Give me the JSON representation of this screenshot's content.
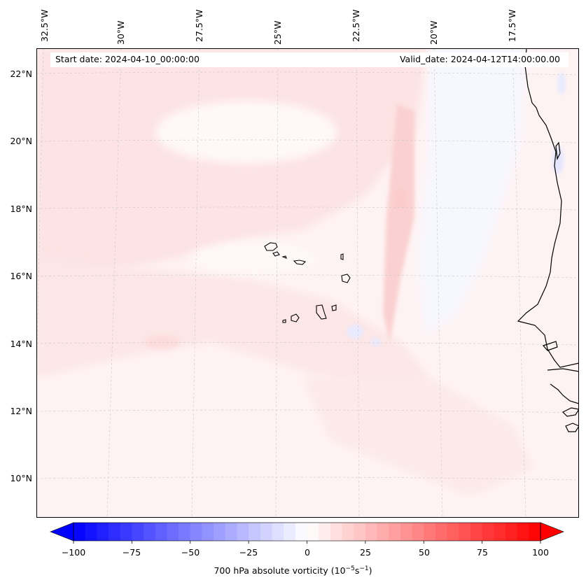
{
  "header": {
    "start_date": "Start date: 2024-04-10_00:00:00",
    "valid_date": "Valid_date: 2024-04-12T14:00:00.00"
  },
  "axes": {
    "longitude_labels": [
      "32.5°W",
      "30°W",
      "27.5°W",
      "25°W",
      "22.5°W",
      "20°W",
      "17.5°W"
    ],
    "latitude_labels": [
      "22°N",
      "20°N",
      "18°N",
      "16°N",
      "14°N",
      "12°N",
      "10°N"
    ]
  },
  "map": {
    "field": "700 hPa absolute vorticity",
    "features": [
      "cape-verde-islands",
      "west-africa-coastline",
      "gridlines"
    ]
  },
  "colorbar": {
    "ticks": [
      "−100",
      "−75",
      "−50",
      "−25",
      "0",
      "25",
      "50",
      "75",
      "100"
    ],
    "label_prefix": "700 hPa absolute vorticity (10",
    "label_exp1": "−5",
    "label_mid": "s",
    "label_exp2": "−1",
    "label_suffix": ")",
    "min": -100,
    "max": 100,
    "n_levels": 40,
    "colors": {
      "negative": "#0000ff",
      "zero": "#ffffff",
      "positive": "#ff0000"
    }
  }
}
